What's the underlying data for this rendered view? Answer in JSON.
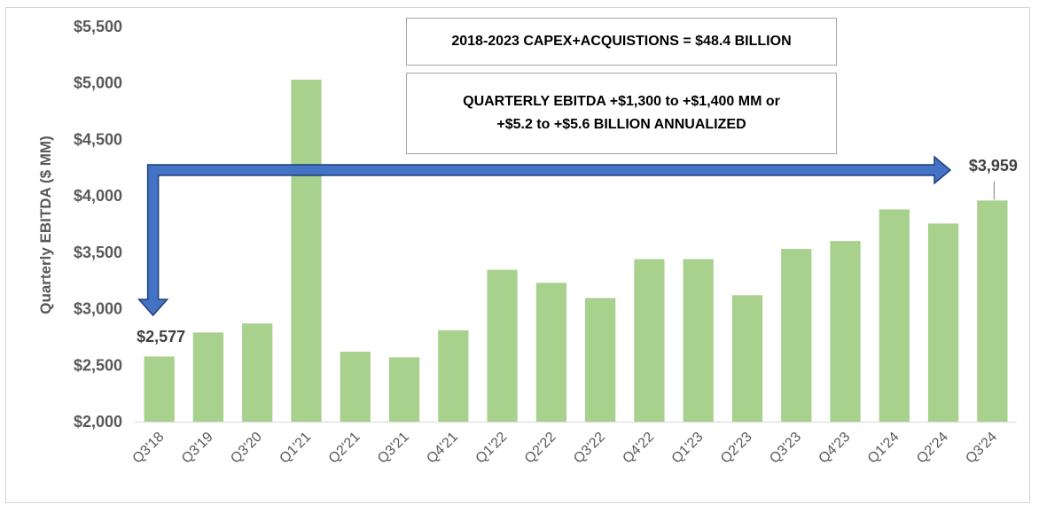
{
  "chart_data": {
    "type": "bar",
    "title": "",
    "xlabel": "",
    "ylabel": "Quarterly  EBITDA ($ MM)",
    "ylim": [
      2000,
      5500
    ],
    "yticks": [
      2000,
      2500,
      3000,
      3500,
      4000,
      4500,
      5000,
      5500
    ],
    "ytick_labels": [
      "$2,000",
      "$2,500",
      "$3,000",
      "$3,500",
      "$4,000",
      "$4,500",
      "$5,000",
      "$5,500"
    ],
    "grid": false,
    "bar_color": "#a9d18e",
    "arrow_color": "#4472c4",
    "arrow_outline": "#1f3f7a",
    "categories": [
      "Q3'18",
      "Q3'19",
      "Q3'20",
      "Q1'21",
      "Q2'21",
      "Q3'21",
      "Q4'21",
      "Q1'22",
      "Q2'22",
      "Q3'22",
      "Q4'22",
      "Q1'23",
      "Q2'23",
      "Q3'23",
      "Q4'23",
      "Q1'24",
      "Q2'24",
      "Q3'24"
    ],
    "values": [
      2577,
      2790,
      2870,
      5030,
      2620,
      2570,
      2810,
      3345,
      3230,
      3095,
      3440,
      3440,
      3120,
      3530,
      3600,
      3880,
      3755,
      3959
    ],
    "data_labels": [
      {
        "index": 0,
        "text": "$2,577"
      },
      {
        "index": 17,
        "text": "$3,959"
      }
    ],
    "annotations": {
      "capex": "2018-2023 CAPEX+ACQUISTIONS = $48.4 BILLION",
      "ebitda_line1": "QUARTERLY EBITDA +$1,300 to +$1,400 MM or",
      "ebitda_line2": "+$5.2 to +$5.6 BILLION ANNUALIZED"
    }
  }
}
